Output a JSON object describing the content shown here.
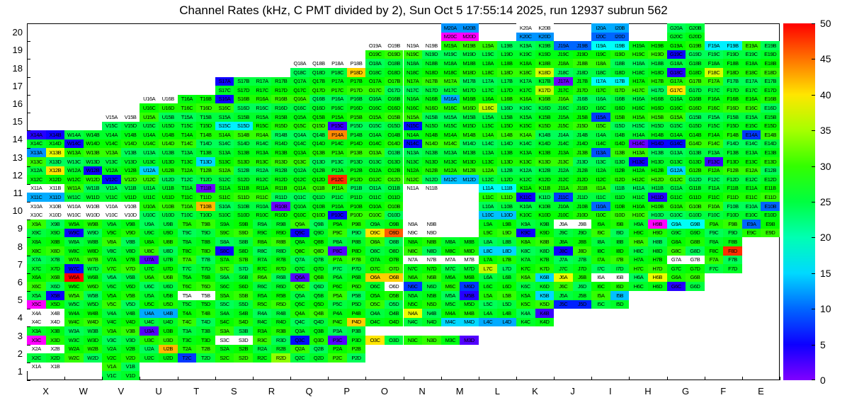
{
  "page": {
    "background": "#FFFFFF"
  },
  "chart_data": {
    "type": "heatmap",
    "title": "Channel Rates (kHz, C PMT divided by 2), Sun Oct 5 17:55:14 2025, run 12937 subrun 562",
    "unit": "kHz",
    "x_categories": [
      "X",
      "W",
      "V",
      "U",
      "T",
      "S",
      "R",
      "Q",
      "P",
      "O",
      "N",
      "M",
      "L",
      "K",
      "J",
      "I",
      "H",
      "G",
      "F",
      "E"
    ],
    "cell_suffixes": [
      "A",
      "B",
      "C",
      "D"
    ],
    "default_rate": 27,
    "default_jitter": 3,
    "overflow_color": "#FF00FF",
    "colorbar": {
      "min": 0,
      "max": 50,
      "ticks": [
        0,
        5,
        10,
        15,
        20,
        25,
        30,
        35,
        40,
        45,
        50
      ],
      "stops": [
        {
          "value": 0,
          "color": "#8000FF"
        },
        {
          "value": 5,
          "color": "#0D00FF"
        },
        {
          "value": 10,
          "color": "#0066FF"
        },
        {
          "value": 15,
          "color": "#00D9FF"
        },
        {
          "value": 20,
          "color": "#00FFB3"
        },
        {
          "value": 25,
          "color": "#00FF40"
        },
        {
          "value": 30,
          "color": "#33FF00"
        },
        {
          "value": 35,
          "color": "#A6FF00"
        },
        {
          "value": 40,
          "color": "#FFE600"
        },
        {
          "value": 45,
          "color": "#FF7300"
        },
        {
          "value": 50,
          "color": "#FF0000"
        }
      ]
    },
    "rows": [
      {
        "n": 20,
        "only": [
          "M",
          "K",
          "I",
          "G"
        ],
        "cells": {
          "M20A": 12,
          "M20B": 12,
          "M20C": "m",
          "M20D": "m",
          "K20A": "w",
          "K20B": "w",
          "K20C": 12,
          "K20D": 12,
          "I20A": 13,
          "I20B": 13,
          "I20C": 10,
          "I20D": 10
        }
      },
      {
        "n": 19,
        "from": "O",
        "to": "E",
        "cells": {
          "O19A": "w",
          "O19B": "w",
          "N19A": "w",
          "N19B": "w",
          "J19A": 10,
          "J19B": 10,
          "I19A": 17,
          "I19B": 17,
          "G19C": 5,
          "F19A": 16,
          "F19B": 16
        }
      },
      {
        "n": 18,
        "from": "Q",
        "to": "E",
        "cells": {
          "Q18A": "w",
          "Q18B": "w",
          "P18A": "w",
          "P18B": "w",
          "P18D": 41,
          "K18D": 37,
          "G18C": 4,
          "F18C": 37
        }
      },
      {
        "n": 17,
        "from": "S",
        "to": "E",
        "cells": {
          "S17A": 5,
          "J17A": 1,
          "K17D": 36,
          "I17A": 17,
          "I17B": 17,
          "G17C": 40
        }
      },
      {
        "n": 16,
        "from": "U",
        "to": "E",
        "cells": {
          "U16A": "w",
          "U16B": "w",
          "S16A": 5,
          "M16A": 13,
          "L16C": 36
        }
      },
      {
        "n": 15,
        "from": "V",
        "to": "E",
        "cells": {
          "V15A": "w",
          "V15B": "w",
          "S15C": 16,
          "S15D": 16,
          "P15C": 3,
          "N15C": 6,
          "I15A": 8
        }
      },
      {
        "n": 14,
        "from": "X",
        "to": "E",
        "cells": {
          "X14A": 4,
          "X14B": 5,
          "W14C": 5,
          "P14A": 44,
          "N14C": 6,
          "H14C": 1,
          "H14D": 5,
          "G14C": 6,
          "E14A": 8
        }
      },
      {
        "n": 13,
        "from": "X",
        "to": "E",
        "cells": {
          "X13A": 12,
          "X13B": 38,
          "T13D": 15,
          "I13A": 9,
          "H13C": 5,
          "F13C": 3
        }
      },
      {
        "n": 12,
        "from": "X",
        "to": "E",
        "cells": {
          "X12B": 40,
          "W12B": 5,
          "V12C": 6,
          "U12A": 15,
          "P12C": 48,
          "M12C": 14,
          "M12D": 14,
          "G12A": 15
        }
      },
      {
        "n": 11,
        "from": "X",
        "to": "E",
        "skip": [
          "M"
        ],
        "cells": {
          "X11A": "w",
          "X11B": "w",
          "X11C": 13,
          "X11D": 13,
          "T11B": 1,
          "N11A": "w",
          "N11B": "w",
          "N11C": "-",
          "N11D": "-",
          "L11A": 17,
          "L11B": 17,
          "K11C": 5,
          "J11C": 8,
          "H11D": 4
        }
      },
      {
        "n": 10,
        "from": "X",
        "to": "E",
        "skip": [
          "N",
          "M"
        ],
        "cells": {
          "X10A": "w",
          "X10B": "w",
          "X10C": "w",
          "X10D": "w",
          "W10A": "w",
          "W10B": "w",
          "W10C": "w",
          "W10D": "w",
          "V10A": "w",
          "V10B": "w",
          "V10C": "w",
          "V10D": "w",
          "T10B": 42,
          "R10B": 1,
          "P10C": 5,
          "L10C": 14,
          "L10D": 14,
          "I10A": 10,
          "E10B": 10
        }
      },
      {
        "n": 9,
        "from": "X",
        "to": "E",
        "skip": [
          "M"
        ],
        "cells": {
          "N9A": "w",
          "N9B": "w",
          "N9C": "w",
          "N9D": "w",
          "W9C": 5,
          "Q9C": 5,
          "O9C": 40,
          "O9D": 46,
          "K9C": 5,
          "J9A": "w",
          "J9B": "w",
          "H9B": "m",
          "G9A": 17,
          "G9B": 17,
          "E9A": 10
        }
      },
      {
        "n": 8,
        "from": "X",
        "to": "F",
        "cells": {
          "S8C": 5,
          "P8C": 2,
          "L8C": 15,
          "L8D": 15,
          "J8C": 5,
          "F8D": 48
        }
      },
      {
        "n": 7,
        "from": "X",
        "to": "F",
        "cells": {
          "U7A": 2,
          "W7C": 6,
          "N7A": "w",
          "N7B": "w",
          "M7A": "w",
          "M7B": "w",
          "L7C": 36,
          "G7A": "w",
          "G7B": "w"
        }
      },
      {
        "n": 6,
        "from": "X",
        "to": "G",
        "cells": {
          "W6A": 50,
          "Q6A": 2,
          "O6A": 41,
          "O6B": 41,
          "O6D": "w",
          "N6C": 8,
          "M6D": 8,
          "K6B": 15,
          "J6A": 38,
          "I6A": "w",
          "I6B": "w",
          "H6B": 38,
          "G6C": 4
        }
      },
      {
        "n": 5,
        "from": "X",
        "to": "I",
        "cells": {
          "X5B": 5,
          "X5C": "m",
          "T5A": "w",
          "T5B": "w",
          "M5B": 4,
          "K5B": 15,
          "J5C": 7,
          "J5D": 7,
          "I5B": 14
        }
      },
      {
        "n": 4,
        "from": "X",
        "to": "K",
        "cells": {
          "X4A": "w",
          "X4B": "w",
          "X4C": "w",
          "X4D": "w",
          "U4A": 13,
          "U4B": 13,
          "P4D": 41,
          "N4A": 38,
          "M4C": 15,
          "M4D": 15,
          "L4C": 13,
          "L4D": 13,
          "K4B": 3
        }
      },
      {
        "n": 3,
        "from": "X",
        "to": "M",
        "cells": {
          "X3C": "m",
          "U3A": 2,
          "S3C": "w",
          "S3D": "w",
          "Q3C": 6,
          "P3C": 2,
          "O3A": "-",
          "O3B": "-",
          "O3C": 40,
          "N3A": "-",
          "N3B": "-",
          "M3A": "-",
          "M3B": "-",
          "M3D": 2
        }
      },
      {
        "n": 2,
        "from": "X",
        "to": "P",
        "cells": {
          "X2A": "w",
          "X2B": "w",
          "U2B": 42,
          "T2C": 8,
          "R2D": 34
        }
      },
      {
        "n": 1,
        "only": [
          "X",
          "V"
        ],
        "cells": {
          "X1A": "w",
          "X1B": "w",
          "X1C": "-",
          "X1D": "-"
        }
      }
    ]
  }
}
